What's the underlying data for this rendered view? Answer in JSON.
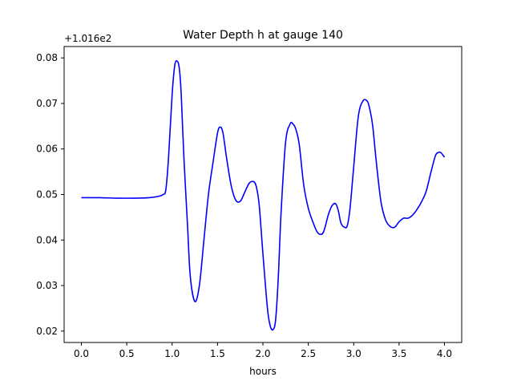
{
  "chart_data": {
    "type": "line",
    "title": "Water Depth h at gauge 140",
    "xlabel": "hours",
    "ylabel": "",
    "offset_text": "+1.016e2",
    "xlim": [
      -0.19,
      4.19
    ],
    "ylim": [
      0.0175,
      0.0825
    ],
    "x_ticks": [
      0.0,
      0.5,
      1.0,
      1.5,
      2.0,
      2.5,
      3.0,
      3.5,
      4.0
    ],
    "x_tick_labels": [
      "0.0",
      "0.5",
      "1.0",
      "1.5",
      "2.0",
      "2.5",
      "3.0",
      "3.5",
      "4.0"
    ],
    "y_ticks": [
      0.02,
      0.03,
      0.04,
      0.05,
      0.06,
      0.07,
      0.08
    ],
    "y_tick_labels": [
      "0.02",
      "0.03",
      "0.04",
      "0.05",
      "0.06",
      "0.07",
      "0.08"
    ],
    "grid": false,
    "series": [
      {
        "color": "#0000ff",
        "x": [
          0.0,
          0.2,
          0.4,
          0.6,
          0.75,
          0.85,
          0.9,
          0.93,
          0.96,
          1.0,
          1.03,
          1.06,
          1.08,
          1.1,
          1.13,
          1.17,
          1.2,
          1.25,
          1.3,
          1.35,
          1.4,
          1.45,
          1.5,
          1.53,
          1.56,
          1.6,
          1.65,
          1.7,
          1.75,
          1.8,
          1.85,
          1.9,
          1.93,
          1.96,
          2.0,
          2.05,
          2.08,
          2.11,
          2.14,
          2.17,
          2.2,
          2.25,
          2.3,
          2.33,
          2.36,
          2.4,
          2.45,
          2.5,
          2.55,
          2.6,
          2.65,
          2.68,
          2.72,
          2.76,
          2.8,
          2.83,
          2.86,
          2.9,
          2.93,
          2.96,
          3.0,
          3.05,
          3.1,
          3.15,
          3.18,
          3.21,
          3.25,
          3.3,
          3.35,
          3.4,
          3.45,
          3.5,
          3.55,
          3.6,
          3.65,
          3.7,
          3.75,
          3.8,
          3.85,
          3.9,
          3.93,
          3.96,
          4.0
        ],
        "y": [
          0.0493,
          0.0493,
          0.0492,
          0.0492,
          0.0493,
          0.0496,
          0.05,
          0.051,
          0.058,
          0.072,
          0.0785,
          0.0792,
          0.0775,
          0.072,
          0.058,
          0.043,
          0.032,
          0.0265,
          0.03,
          0.04,
          0.05,
          0.057,
          0.0635,
          0.0648,
          0.0635,
          0.058,
          0.052,
          0.0488,
          0.0485,
          0.0505,
          0.0525,
          0.0528,
          0.0515,
          0.0475,
          0.037,
          0.025,
          0.0212,
          0.0203,
          0.0225,
          0.032,
          0.046,
          0.0615,
          0.0655,
          0.0655,
          0.0645,
          0.061,
          0.052,
          0.047,
          0.044,
          0.0417,
          0.0413,
          0.0425,
          0.0455,
          0.0475,
          0.048,
          0.0465,
          0.0437,
          0.0428,
          0.0432,
          0.047,
          0.056,
          0.067,
          0.0705,
          0.0705,
          0.0685,
          0.065,
          0.057,
          0.0485,
          0.0445,
          0.043,
          0.0428,
          0.044,
          0.0448,
          0.0448,
          0.0455,
          0.0468,
          0.0485,
          0.0508,
          0.0548,
          0.0585,
          0.0592,
          0.0592,
          0.0582
        ]
      }
    ]
  }
}
